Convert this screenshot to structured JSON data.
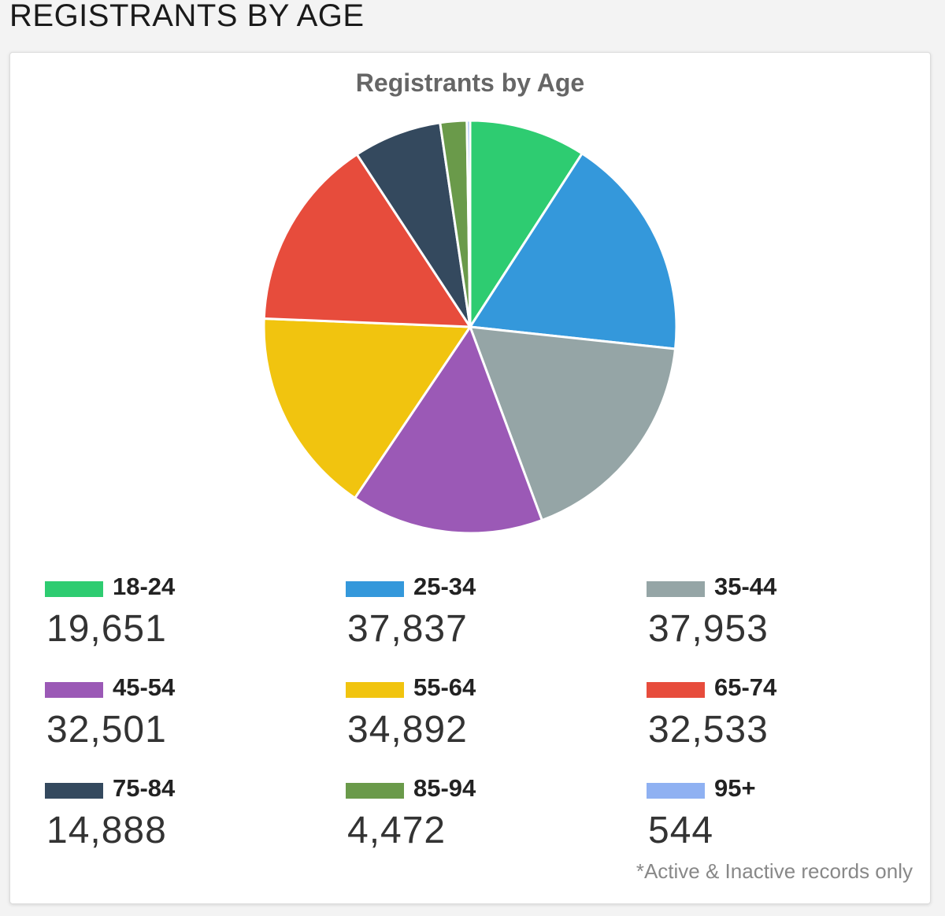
{
  "page": {
    "heading": "REGISTRANTS BY AGE",
    "footnote": "*Active & Inactive records only"
  },
  "chart_data": {
    "type": "pie",
    "title": "Registrants by Age",
    "categories": [
      "18-24",
      "25-34",
      "35-44",
      "45-54",
      "55-64",
      "65-74",
      "75-84",
      "85-94",
      "95+"
    ],
    "values": [
      19651,
      37837,
      37953,
      32501,
      34892,
      32533,
      14888,
      4472,
      544
    ],
    "value_labels": [
      "19,651",
      "37,837",
      "37,953",
      "32,501",
      "34,892",
      "32,533",
      "14,888",
      "4,472",
      "544"
    ],
    "colors": [
      "#2ecc71",
      "#3498db",
      "#95a5a6",
      "#9b59b6",
      "#f1c40f",
      "#e74c3c",
      "#34495e",
      "#6a9a4a",
      "#8fb1f2"
    ],
    "legend_placement": "bottom"
  }
}
